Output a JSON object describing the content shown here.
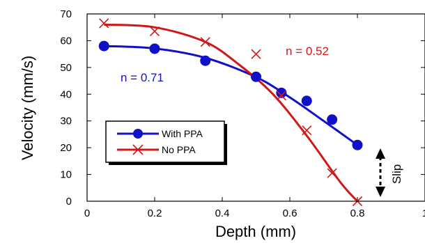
{
  "chart_data": {
    "type": "scatter",
    "title": "",
    "xlabel": "Depth (mm)",
    "ylabel": "Velocity (mm/s)",
    "xlim": [
      0,
      1
    ],
    "ylim": [
      0,
      70
    ],
    "x_ticks": [
      "0",
      "0.2",
      "0.4",
      "0.6",
      "0.8",
      "1"
    ],
    "y_ticks": [
      "0",
      "10",
      "20",
      "30",
      "40",
      "50",
      "60",
      "70"
    ],
    "grid": false,
    "legend_position": "lower-left",
    "series": [
      {
        "name": "With PPA",
        "color": "#1010c8",
        "marker": "circle",
        "points": [
          [
            0.05,
            58
          ],
          [
            0.2,
            57
          ],
          [
            0.35,
            52.5
          ],
          [
            0.5,
            46.5
          ],
          [
            0.575,
            40.5
          ],
          [
            0.65,
            37.5
          ],
          [
            0.725,
            30.5
          ],
          [
            0.8,
            21
          ]
        ],
        "fit": [
          [
            0.05,
            58
          ],
          [
            0.2,
            57.1
          ],
          [
            0.35,
            53.6
          ],
          [
            0.5,
            46.4
          ],
          [
            0.6,
            38.8
          ],
          [
            0.7,
            30.0
          ],
          [
            0.8,
            21
          ]
        ]
      },
      {
        "name": "No PPA",
        "color": "#d01818",
        "marker": "x",
        "points": [
          [
            0.05,
            66.5
          ],
          [
            0.2,
            63.5
          ],
          [
            0.35,
            59.5
          ],
          [
            0.5,
            55
          ],
          [
            0.575,
            39.5
          ],
          [
            0.65,
            26.5
          ],
          [
            0.725,
            10.5
          ],
          [
            0.8,
            0
          ]
        ],
        "fit": [
          [
            0.05,
            66
          ],
          [
            0.2,
            65
          ],
          [
            0.35,
            59.5
          ],
          [
            0.45,
            51
          ],
          [
            0.55,
            40
          ],
          [
            0.65,
            24.5
          ],
          [
            0.75,
            7
          ],
          [
            0.8,
            0
          ]
        ]
      }
    ],
    "annotations": [
      {
        "text": "n = 0.52",
        "color": "#d01818",
        "x": 0.65,
        "y": 55
      },
      {
        "text": "n = 0.71",
        "color": "#1010c8",
        "x": 0.13,
        "y": 47
      },
      {
        "text": "Slip",
        "color": "#000000",
        "x": 0.86,
        "y": 10.5
      }
    ],
    "slip_arrow": {
      "x": 0.86,
      "y_from": 0,
      "y_to": 21
    }
  }
}
